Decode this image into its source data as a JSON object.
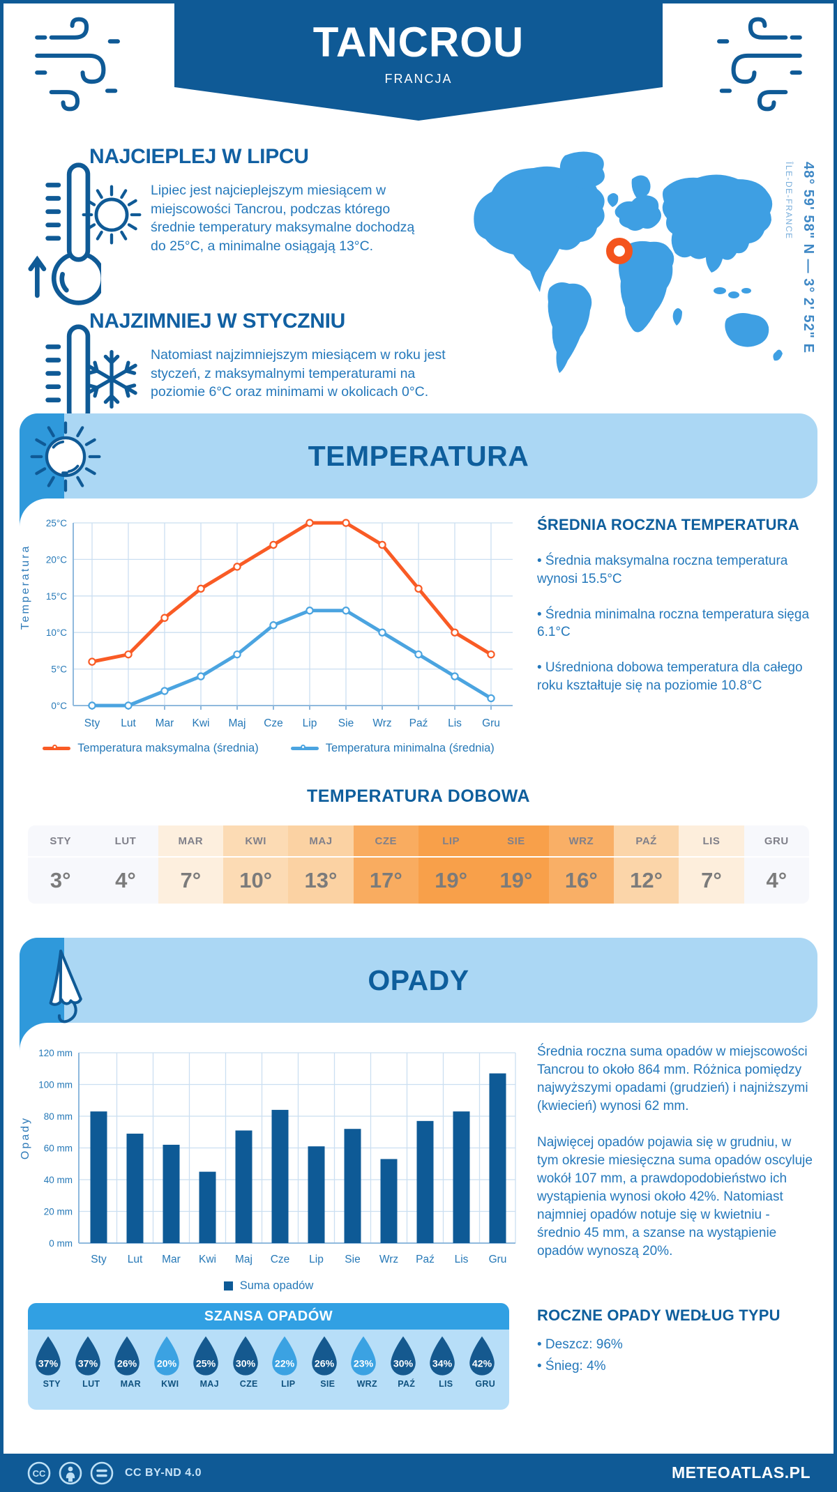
{
  "page": {
    "title": "TANCROU",
    "subtitle": "FRANCJA"
  },
  "colors": {
    "brand": "#0F5A96",
    "banner_light": "#ABD7F4",
    "banner_block": "#2F99DB",
    "heading": "#1160A2",
    "body_text": "#2478BB",
    "map_land": "#3E9FE3",
    "marker": "#F4541D",
    "grid": "#CBDFF1",
    "axis": "#8FB9DD",
    "tick_text": "#2578B7",
    "chance_header": "#31A0E3",
    "chance_panel": "#B7DEF8",
    "drop_dark": "#15598F",
    "drop_light": "#3BA2E2",
    "footer_text": "#C8E4F8"
  },
  "highlights": {
    "warm": {
      "title": "NAJCIEPLEJ W LIPCU",
      "text": "Lipiec jest najcieplejszym miesiącem w miejscowości Tancrou, podczas którego średnie temperatury maksymalne dochodzą do 25°C, a minimalne osiągają 13°C."
    },
    "cold": {
      "title": "NAJZIMNIEJ W STYCZNIU",
      "text": "Natomiast najzimniejszym miesiącem w roku jest styczeń, z maksymalnymi temperaturami na poziomie 6°C oraz minimami w okolicach 0°C."
    }
  },
  "map": {
    "coordinates": "48° 59' 58\" N — 3° 2' 52\" E",
    "region": "ÎLE-DE-FRANCE"
  },
  "temperature": {
    "banner_title": "TEMPERATURA",
    "stats_title": "ŚREDNIA ROCZNA TEMPERATURA",
    "stats": [
      "• Średnia maksymalna roczna temperatura wynosi 15.5°C",
      "• Średnia minimalna roczna temperatura sięga 6.1°C",
      "• Uśredniona dobowa temperatura dla całego roku kształtuje się na poziomie 10.8°C"
    ]
  },
  "daily": {
    "title": "TEMPERATURA DOBOWA",
    "months": [
      "STY",
      "LUT",
      "MAR",
      "KWI",
      "MAJ",
      "CZE",
      "LIP",
      "SIE",
      "WRZ",
      "PAŹ",
      "LIS",
      "GRU"
    ],
    "values": [
      "3°",
      "4°",
      "7°",
      "10°",
      "13°",
      "17°",
      "19°",
      "19°",
      "16°",
      "12°",
      "7°",
      "4°"
    ],
    "cell_colors": [
      "#F7F8FC",
      "#F7F8FC",
      "#FDEFDE",
      "#FCDBB4",
      "#FBD2A3",
      "#F9AC60",
      "#F8A04A",
      "#F8A04A",
      "#F9AF66",
      "#FBD5A9",
      "#FDEEDC",
      "#F7F8FC"
    ]
  },
  "precipitation": {
    "banner_title": "OPADY",
    "paragraphs": [
      "Średnia roczna suma opadów w miejscowości Tancrou to około 864 mm. Różnica pomiędzy najwyższymi opadami (grudzień) i najniższymi (kwiecień) wynosi 62 mm.",
      "Najwięcej opadów pojawia się w grudniu, w tym okresie miesięczna suma opadów oscyluje wokół 107 mm, a prawdopodobieństwo ich wystąpienia wynosi około 42%. Natomiast najmniej opadów notuje się w kwietniu - średnio 45 mm, a szanse na wystąpienie opadów wynoszą 20%."
    ],
    "type_title": "ROCZNE OPADY WEDŁUG TYPU",
    "types": [
      "• Deszcz: 96%",
      "• Śnieg: 4%"
    ]
  },
  "rain_chance": {
    "title": "SZANSA OPADÓW",
    "months": [
      "STY",
      "LUT",
      "MAR",
      "KWI",
      "MAJ",
      "CZE",
      "LIP",
      "SIE",
      "WRZ",
      "PAŹ",
      "LIS",
      "GRU"
    ],
    "values": [
      "37%",
      "37%",
      "26%",
      "20%",
      "25%",
      "30%",
      "22%",
      "26%",
      "23%",
      "30%",
      "34%",
      "42%"
    ],
    "drop_colors": [
      "#15598F",
      "#15598F",
      "#15598F",
      "#3BA2E2",
      "#15598F",
      "#15598F",
      "#3BA2E2",
      "#15598F",
      "#3BA2E2",
      "#15598F",
      "#15598F",
      "#15598F"
    ]
  },
  "footer": {
    "license": "CC BY-ND 4.0",
    "site": "METEOATLAS.PL"
  },
  "chart_data": [
    {
      "type": "line",
      "title": "",
      "categories": [
        "Sty",
        "Lut",
        "Mar",
        "Kwi",
        "Maj",
        "Cze",
        "Lip",
        "Sie",
        "Wrz",
        "Paź",
        "Lis",
        "Gru"
      ],
      "series": [
        {
          "name": "Temperatura maksymalna (średnia)",
          "color": "#F95B25",
          "values": [
            6,
            7,
            12,
            16,
            19,
            22,
            25,
            25,
            22,
            16,
            10,
            7
          ]
        },
        {
          "name": "Temperatura minimalna (średnia)",
          "color": "#4BA4E0",
          "values": [
            0,
            0,
            2,
            4,
            7,
            11,
            13,
            13,
            10,
            7,
            4,
            1
          ]
        }
      ],
      "xlabel": "",
      "ylabel": "Temperatura",
      "yticks": [
        "0°C",
        "5°C",
        "10°C",
        "15°C",
        "20°C",
        "25°C"
      ],
      "ytick_values": [
        0,
        5,
        10,
        15,
        20,
        25
      ],
      "ylim": [
        0,
        25
      ],
      "grid": true,
      "legend_position": "bottom"
    },
    {
      "type": "bar",
      "title": "",
      "categories": [
        "Sty",
        "Lut",
        "Mar",
        "Kwi",
        "Maj",
        "Cze",
        "Lip",
        "Sie",
        "Wrz",
        "Paź",
        "Lis",
        "Gru"
      ],
      "series": [
        {
          "name": "Suma opadów",
          "color": "#0E5A96",
          "values": [
            83,
            69,
            62,
            45,
            71,
            84,
            61,
            72,
            53,
            77,
            83,
            107
          ]
        }
      ],
      "xlabel": "",
      "ylabel": "Opady",
      "yticks": [
        "0 mm",
        "20 mm",
        "40 mm",
        "60 mm",
        "80 mm",
        "100 mm",
        "120 mm"
      ],
      "ytick_values": [
        0,
        20,
        40,
        60,
        80,
        100,
        120
      ],
      "ylim": [
        0,
        120
      ],
      "grid": true,
      "legend_position": "bottom"
    }
  ]
}
